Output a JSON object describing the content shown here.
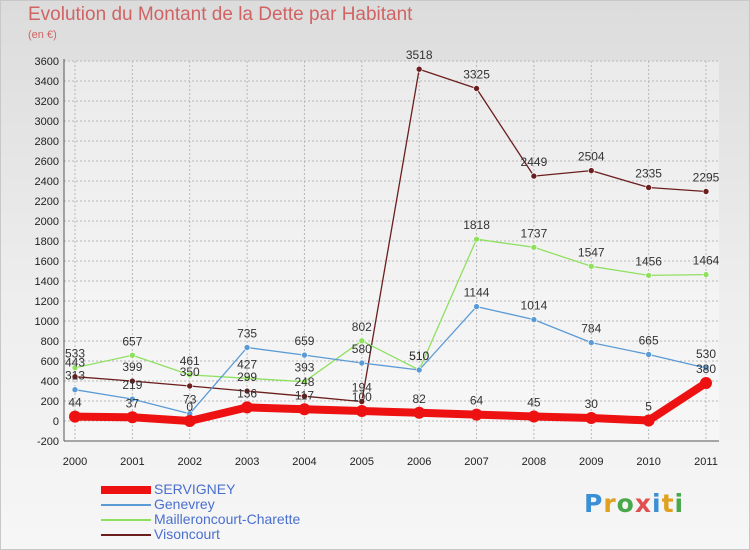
{
  "title": "Evolution du Montant de la Dette par Habitant",
  "subtitle": "(en €)",
  "logo": {
    "text": "Proxiti",
    "letter_colors": [
      "#3a8fd6",
      "#e0a020",
      "#4aa84a",
      "#e05050",
      "#3a8fd6",
      "#e0a020",
      "#4aa84a"
    ]
  },
  "chart_data": {
    "type": "line",
    "title": "Evolution du Montant de la Dette par Habitant",
    "ylabel": "(en €)",
    "x": [
      "2000",
      "2001",
      "2002",
      "2003",
      "2004",
      "2005",
      "2006",
      "2007",
      "2008",
      "2009",
      "2010",
      "2011"
    ],
    "ylim": [
      -200,
      3600
    ],
    "yticks": [
      -200,
      0,
      200,
      400,
      600,
      800,
      1000,
      1200,
      1400,
      1600,
      1800,
      2000,
      2200,
      2400,
      2600,
      2800,
      3000,
      3200,
      3400,
      3600
    ],
    "grid": true,
    "legend": "bottom-left",
    "series": [
      {
        "name": "SERVIGNEY",
        "color": "#ee1111",
        "values": [
          44,
          37,
          0,
          136,
          117,
          100,
          82,
          64,
          45,
          30,
          5,
          380
        ]
      },
      {
        "name": "Genevrey",
        "color": "#5b9bd5",
        "values": [
          313,
          219,
          73,
          735,
          659,
          580,
          510,
          1144,
          1014,
          784,
          665,
          530
        ]
      },
      {
        "name": "Mailleroncourt-Charette",
        "color": "#90e060",
        "values": [
          533,
          657,
          461,
          427,
          393,
          802,
          510,
          1818,
          1737,
          1547,
          1456,
          1464
        ]
      },
      {
        "name": "Visoncourt",
        "color": "#6b1e1e",
        "values": [
          443,
          399,
          350,
          299,
          248,
          194,
          3518,
          3325,
          2449,
          2504,
          2335,
          2295
        ]
      }
    ],
    "point_labels": [
      [
        "44",
        "37",
        "0",
        "136",
        "117",
        "100",
        "82",
        "64",
        "45",
        "30",
        "5",
        "380"
      ],
      [
        "313",
        "219",
        "73",
        "735",
        "659",
        "580",
        "510",
        "1144",
        "1014",
        "784",
        "665",
        "530"
      ],
      [
        "533",
        "657",
        "461",
        "427",
        "393",
        "802",
        "510",
        "1818",
        "1737",
        "1547",
        "1456",
        "1464"
      ],
      [
        "443",
        "399",
        "350",
        "299",
        "248",
        "194",
        "3518",
        "3325",
        "2449",
        "2504",
        "2335",
        "2295"
      ]
    ]
  }
}
